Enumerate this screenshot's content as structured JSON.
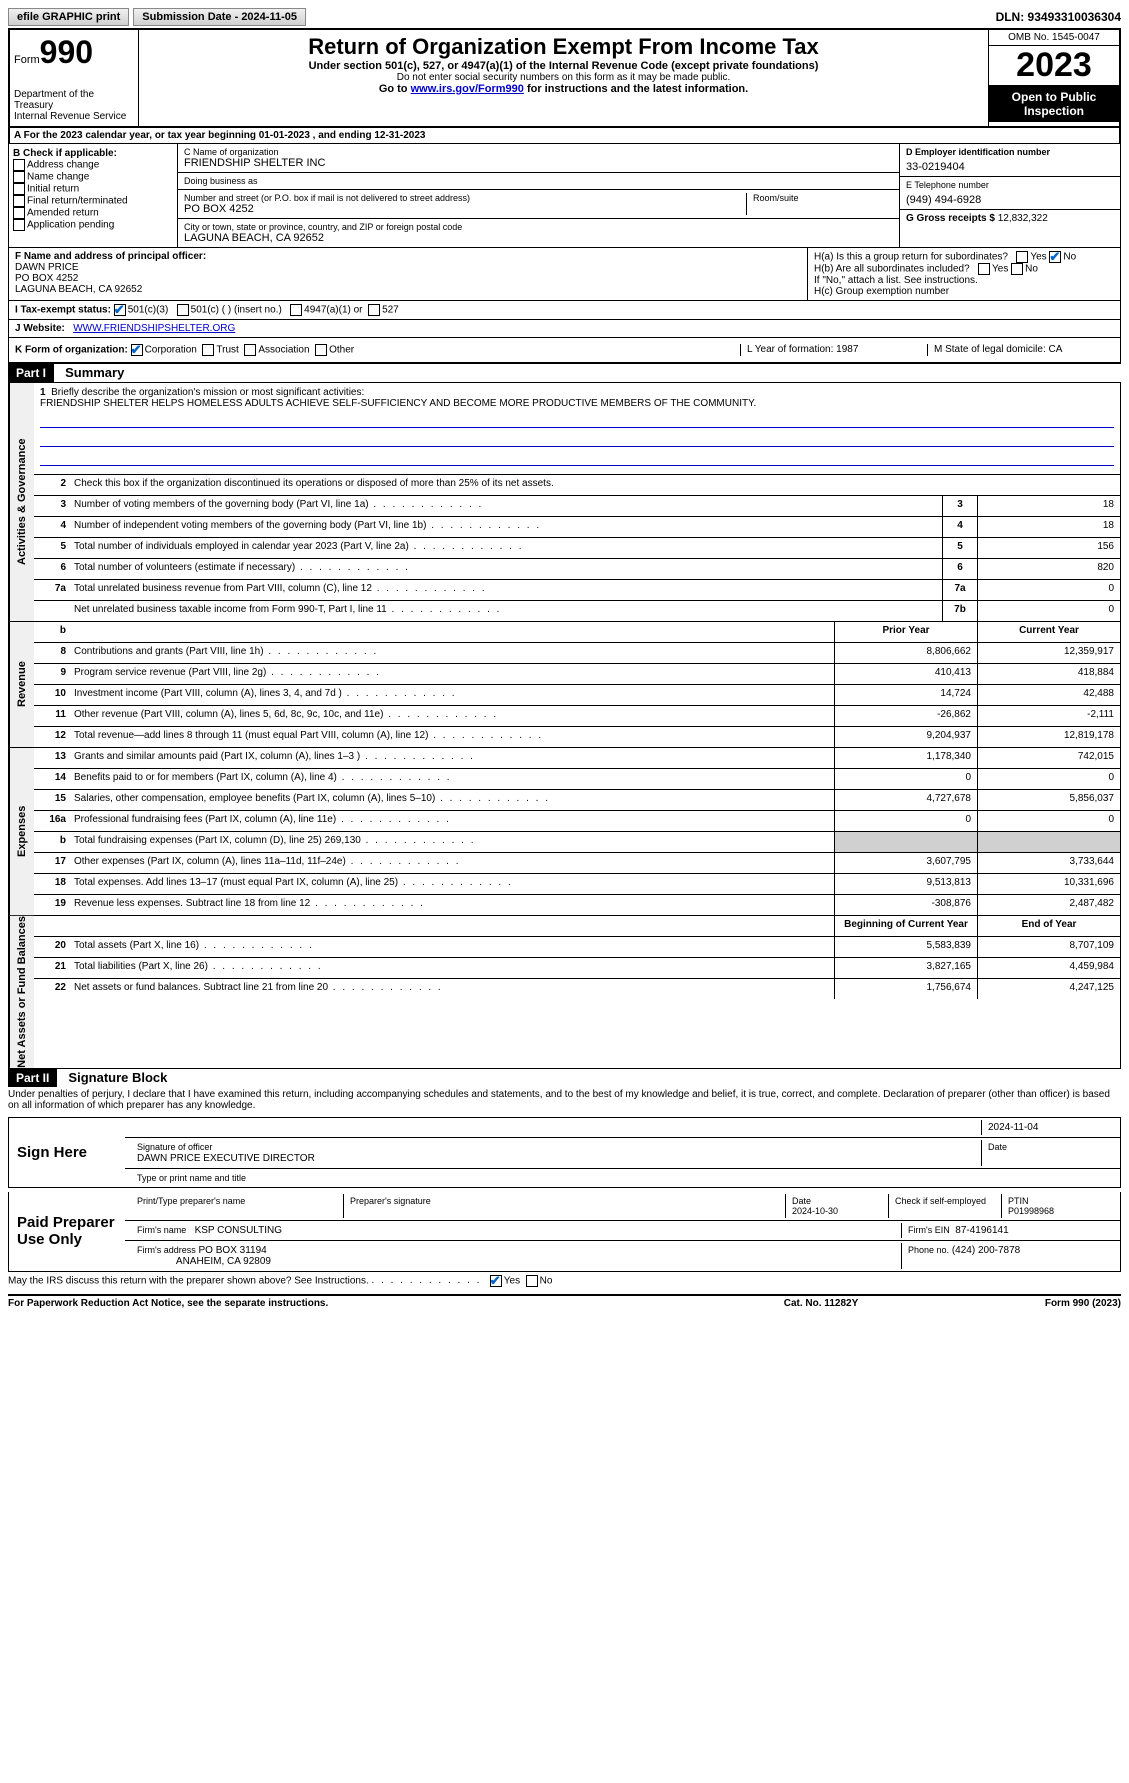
{
  "topbar": {
    "efile": "efile GRAPHIC print",
    "submission": "Submission Date - 2024-11-05",
    "dln": "DLN: 93493310036304"
  },
  "header": {
    "form": "Form",
    "form_num": "990",
    "dept": "Department of the Treasury\nInternal Revenue Service",
    "title": "Return of Organization Exempt From Income Tax",
    "sub1": "Under section 501(c), 527, or 4947(a)(1) of the Internal Revenue Code (except private foundations)",
    "sub2": "Do not enter social security numbers on this form as it may be made public.",
    "sub3_pre": "Go to ",
    "sub3_link": "www.irs.gov/Form990",
    "sub3_post": " for instructions and the latest information.",
    "omb": "OMB No. 1545-0047",
    "year": "2023",
    "inspect": "Open to Public Inspection"
  },
  "a": {
    "text_pre": "For the 2023 calendar year, or tax year beginning ",
    "begin": "01-01-2023",
    "text_mid": " , and ending ",
    "end": "12-31-2023"
  },
  "b": {
    "header": "B Check if applicable:",
    "opts": [
      "Address change",
      "Name change",
      "Initial return",
      "Final return/terminated",
      "Amended return",
      "Application pending"
    ]
  },
  "c": {
    "name_label": "C Name of organization",
    "name": "FRIENDSHIP SHELTER INC",
    "dba_label": "Doing business as",
    "dba": "",
    "street_label": "Number and street (or P.O. box if mail is not delivered to street address)",
    "street": "PO BOX 4252",
    "room_label": "Room/suite",
    "room": "",
    "city_label": "City or town, state or province, country, and ZIP or foreign postal code",
    "city": "LAGUNA BEACH, CA  92652"
  },
  "d": {
    "ein_label": "D Employer identification number",
    "ein": "33-0219404",
    "phone_label": "E Telephone number",
    "phone": "(949) 494-6928",
    "gross_label": "G Gross receipts $",
    "gross": "12,832,322"
  },
  "f": {
    "label": "F Name and address of principal officer:",
    "name": "DAWN PRICE",
    "addr1": "PO BOX 4252",
    "addr2": "LAGUNA BEACH, CA  92652"
  },
  "h": {
    "a": "H(a)  Is this a group return for subordinates?",
    "b": "H(b)  Are all subordinates included?",
    "b_note": "If \"No,\" attach a list. See instructions.",
    "c": "H(c)  Group exemption number"
  },
  "i": {
    "label": "I   Tax-exempt status:",
    "o1": "501(c)(3)",
    "o2": "501(c) (  ) (insert no.)",
    "o3": "4947(a)(1) or",
    "o4": "527"
  },
  "j": {
    "label": "J   Website:",
    "val": "WWW.FRIENDSHIPSHELTER.ORG"
  },
  "k": {
    "label": "K Form of organization:",
    "o1": "Corporation",
    "o2": "Trust",
    "o3": "Association",
    "o4": "Other",
    "l": "L Year of formation: 1987",
    "m": "M State of legal domicile: CA"
  },
  "part1": {
    "part": "Part I",
    "title": "Summary"
  },
  "mission": {
    "num": "1",
    "prompt": "Briefly describe the organization's mission or most significant activities:",
    "text": "FRIENDSHIP SHELTER HELPS HOMELESS ADULTS ACHIEVE SELF-SUFFICIENCY AND BECOME MORE PRODUCTIVE MEMBERS OF THE COMMUNITY."
  },
  "line2": "Check this box      if the organization discontinued its operations or disposed of more than 25% of its net assets.",
  "vtabs": {
    "ag": "Activities & Governance",
    "rev": "Revenue",
    "exp": "Expenses",
    "na": "Net Assets or Fund Balances"
  },
  "lines_ag": [
    {
      "n": "3",
      "d": "Number of voting members of the governing body (Part VI, line 1a)",
      "b": "3",
      "v": "18"
    },
    {
      "n": "4",
      "d": "Number of independent voting members of the governing body (Part VI, line 1b)",
      "b": "4",
      "v": "18"
    },
    {
      "n": "5",
      "d": "Total number of individuals employed in calendar year 2023 (Part V, line 2a)",
      "b": "5",
      "v": "156"
    },
    {
      "n": "6",
      "d": "Total number of volunteers (estimate if necessary)",
      "b": "6",
      "v": "820"
    },
    {
      "n": "7a",
      "d": "Total unrelated business revenue from Part VIII, column (C), line 12",
      "b": "7a",
      "v": "0"
    },
    {
      "n": "",
      "d": "Net unrelated business taxable income from Form 990-T, Part I, line 11",
      "b": "7b",
      "v": "0"
    }
  ],
  "rev_header": {
    "py": "Prior Year",
    "cy": "Current Year"
  },
  "lines_rev": [
    {
      "n": "8",
      "d": "Contributions and grants (Part VIII, line 1h)",
      "py": "8,806,662",
      "cy": "12,359,917"
    },
    {
      "n": "9",
      "d": "Program service revenue (Part VIII, line 2g)",
      "py": "410,413",
      "cy": "418,884"
    },
    {
      "n": "10",
      "d": "Investment income (Part VIII, column (A), lines 3, 4, and 7d )",
      "py": "14,724",
      "cy": "42,488"
    },
    {
      "n": "11",
      "d": "Other revenue (Part VIII, column (A), lines 5, 6d, 8c, 9c, 10c, and 11e)",
      "py": "-26,862",
      "cy": "-2,111"
    },
    {
      "n": "12",
      "d": "Total revenue—add lines 8 through 11 (must equal Part VIII, column (A), line 12)",
      "py": "9,204,937",
      "cy": "12,819,178"
    }
  ],
  "lines_exp": [
    {
      "n": "13",
      "d": "Grants and similar amounts paid (Part IX, column (A), lines 1–3 )",
      "py": "1,178,340",
      "cy": "742,015"
    },
    {
      "n": "14",
      "d": "Benefits paid to or for members (Part IX, column (A), line 4)",
      "py": "0",
      "cy": "0"
    },
    {
      "n": "15",
      "d": "Salaries, other compensation, employee benefits (Part IX, column (A), lines 5–10)",
      "py": "4,727,678",
      "cy": "5,856,037"
    },
    {
      "n": "16a",
      "d": "Professional fundraising fees (Part IX, column (A), line 11e)",
      "py": "0",
      "cy": "0"
    },
    {
      "n": "b",
      "d": "Total fundraising expenses (Part IX, column (D), line 25) 269,130",
      "py": "",
      "cy": "",
      "gray": true
    },
    {
      "n": "17",
      "d": "Other expenses (Part IX, column (A), lines 11a–11d, 11f–24e)",
      "py": "3,607,795",
      "cy": "3,733,644"
    },
    {
      "n": "18",
      "d": "Total expenses. Add lines 13–17 (must equal Part IX, column (A), line 25)",
      "py": "9,513,813",
      "cy": "10,331,696"
    },
    {
      "n": "19",
      "d": "Revenue less expenses. Subtract line 18 from line 12",
      "py": "-308,876",
      "cy": "2,487,482"
    }
  ],
  "na_header": {
    "py": "Beginning of Current Year",
    "cy": "End of Year"
  },
  "lines_na": [
    {
      "n": "20",
      "d": "Total assets (Part X, line 16)",
      "py": "5,583,839",
      "cy": "8,707,109"
    },
    {
      "n": "21",
      "d": "Total liabilities (Part X, line 26)",
      "py": "3,827,165",
      "cy": "4,459,984"
    },
    {
      "n": "22",
      "d": "Net assets or fund balances. Subtract line 21 from line 20",
      "py": "1,756,674",
      "cy": "4,247,125"
    }
  ],
  "part2": {
    "part": "Part II",
    "title": "Signature Block"
  },
  "penalties": "Under penalties of perjury, I declare that I have examined this return, including accompanying schedules and statements, and to the best of my knowledge and belief, it is true, correct, and complete. Declaration of preparer (other than officer) is based on all information of which preparer has any knowledge.",
  "sign": {
    "here": "Sign Here",
    "sig_label": "Signature of officer",
    "date": "2024-11-04",
    "date_label": "Date",
    "name": "DAWN PRICE  EXECUTIVE DIRECTOR",
    "name_label": "Type or print name and title"
  },
  "paid": {
    "label": "Paid Preparer Use Only",
    "pname_label": "Print/Type preparer's name",
    "pname": "",
    "psig_label": "Preparer's signature",
    "pdate_label": "Date",
    "pdate": "2024-10-30",
    "check_label": "Check      if self-employed",
    "ptin_label": "PTIN",
    "ptin": "P01998968",
    "firm_label": "Firm's name",
    "firm": "KSP CONSULTING",
    "fein_label": "Firm's EIN",
    "fein": "87-4196141",
    "faddr_label": "Firm's address",
    "faddr1": "PO BOX 31194",
    "faddr2": "ANAHEIM, CA  92809",
    "fphone_label": "Phone no.",
    "fphone": "(424) 200-7878"
  },
  "discuss": "May the IRS discuss this return with the preparer shown above? See Instructions.",
  "footer": {
    "l": "For Paperwork Reduction Act Notice, see the separate instructions.",
    "c": "Cat. No. 11282Y",
    "r": "Form 990 (2023)"
  }
}
